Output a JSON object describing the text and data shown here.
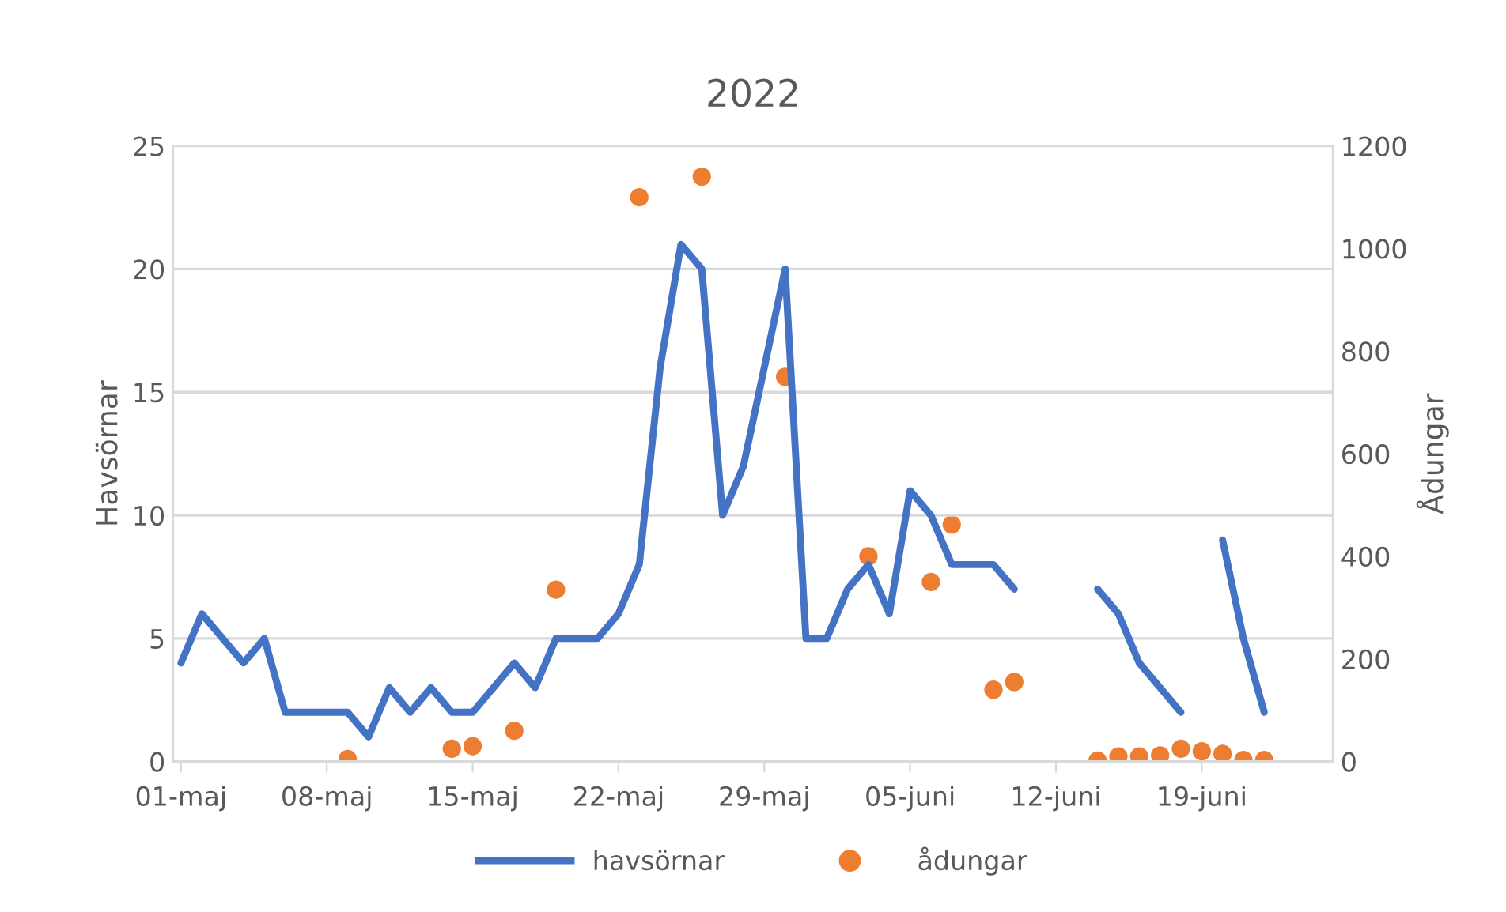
{
  "chart_data": {
    "type": "line",
    "title": "2022",
    "ylabel": "Havsörnar",
    "y2label": "Ådungar",
    "x": [
      "2022-05-01",
      "2022-05-02",
      "2022-05-03",
      "2022-05-04",
      "2022-05-05",
      "2022-05-06",
      "2022-05-07",
      "2022-05-08",
      "2022-05-09",
      "2022-05-10",
      "2022-05-11",
      "2022-05-12",
      "2022-05-13",
      "2022-05-14",
      "2022-05-15",
      "2022-05-16",
      "2022-05-17",
      "2022-05-18",
      "2022-05-19",
      "2022-05-20",
      "2022-05-21",
      "2022-05-22",
      "2022-05-23",
      "2022-05-24",
      "2022-05-25",
      "2022-05-26",
      "2022-05-27",
      "2022-05-28",
      "2022-05-29",
      "2022-05-30",
      "2022-05-31",
      "2022-06-01",
      "2022-06-02",
      "2022-06-03",
      "2022-06-04",
      "2022-06-05",
      "2022-06-06",
      "2022-06-07",
      "2022-06-08",
      "2022-06-09",
      "2022-06-10",
      "2022-06-11",
      "2022-06-12",
      "2022-06-13",
      "2022-06-14",
      "2022-06-15",
      "2022-06-16",
      "2022-06-17",
      "2022-06-18",
      "2022-06-19",
      "2022-06-20",
      "2022-06-21",
      "2022-06-22"
    ],
    "series": [
      {
        "name": "havsörnar",
        "color": "#4472c4",
        "values": [
          4,
          6,
          5,
          4,
          5,
          2,
          2,
          2,
          2,
          1,
          3,
          2,
          3,
          2,
          2,
          3,
          4,
          3,
          5,
          5,
          5,
          6,
          8,
          16,
          21,
          20,
          10,
          12,
          16,
          20,
          5,
          5,
          7,
          8,
          6,
          11,
          10,
          8,
          8,
          8,
          7,
          null,
          null,
          null,
          7,
          6,
          4,
          3,
          2,
          null,
          9,
          5,
          2
        ]
      },
      {
        "name": "ådungar",
        "type": "scatter",
        "axis": "y2",
        "color": "#ed7d31",
        "marker": "circle",
        "x": [
          "2022-05-09",
          "2022-05-14",
          "2022-05-15",
          "2022-05-17",
          "2022-05-19",
          "2022-05-23",
          "2022-05-26",
          "2022-05-30",
          "2022-06-03",
          "2022-06-06",
          "2022-06-07",
          "2022-06-09",
          "2022-06-10",
          "2022-06-14",
          "2022-06-15",
          "2022-06-16",
          "2022-06-17",
          "2022-06-18",
          "2022-06-19",
          "2022-06-20",
          "2022-06-21",
          "2022-06-22"
        ],
        "values": [
          5,
          25,
          30,
          60,
          335,
          1100,
          1140,
          750,
          400,
          350,
          462,
          140,
          155,
          2,
          10,
          10,
          12,
          25,
          20,
          15,
          3,
          3
        ]
      }
    ],
    "xlim": [
      "2022-04-30T15:00",
      "2022-06-25T07:00"
    ],
    "xticks": [
      {
        "value": "2022-05-01",
        "label": "01-maj"
      },
      {
        "value": "2022-05-08",
        "label": "08-maj"
      },
      {
        "value": "2022-05-15",
        "label": "15-maj"
      },
      {
        "value": "2022-05-22",
        "label": "22-maj"
      },
      {
        "value": "2022-05-29",
        "label": "29-maj"
      },
      {
        "value": "2022-06-05",
        "label": "05-juni"
      },
      {
        "value": "2022-06-12",
        "label": "12-juni"
      },
      {
        "value": "2022-06-19",
        "label": "19-juni"
      }
    ],
    "ylim": [
      0,
      25
    ],
    "yticks": [
      0,
      5,
      10,
      15,
      20,
      25
    ],
    "y2lim": [
      0,
      1200
    ],
    "y2ticks": [
      0,
      200,
      400,
      600,
      800,
      1000,
      1200
    ],
    "grid": "y",
    "legend": "bottom"
  }
}
